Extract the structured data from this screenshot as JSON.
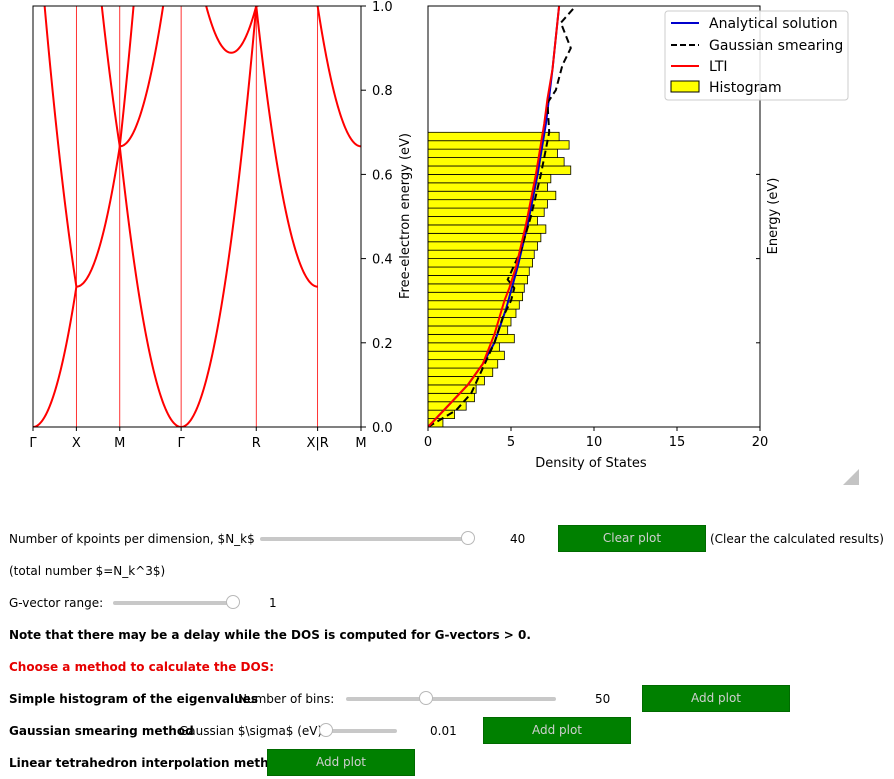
{
  "chart_data": [
    {
      "type": "line",
      "ylabel": "Free-electron energy (eV)",
      "ylim": [
        0,
        1.0
      ],
      "yticks": [
        "0.0",
        "0.2",
        "0.4",
        "0.6",
        "0.8",
        "1.0"
      ],
      "xticks": [
        "Γ",
        "X",
        "M",
        "Γ",
        "R",
        "X|R",
        "M"
      ],
      "series_color": "#ff0000",
      "grid": "vertical lines at high-symmetry points"
    },
    {
      "type": "bar",
      "xlabel": "Density of States",
      "ylabel": "Energy (eV)",
      "xlim": [
        0,
        20
      ],
      "ylim": [
        0,
        1.0
      ],
      "xticks": [
        "0",
        "5",
        "10",
        "15",
        "20"
      ],
      "legend_position": "top-right",
      "legend": [
        {
          "name": "Analytical solution",
          "color": "#0000cc",
          "style": "solid"
        },
        {
          "name": "Gaussian smearing",
          "color": "#000000",
          "style": "dashed"
        },
        {
          "name": "LTI",
          "color": "#ff0000",
          "style": "solid"
        },
        {
          "name": "Histogram",
          "color": "#ffff00",
          "style": "box"
        }
      ],
      "histogram": {
        "bin_width": 0.02,
        "values": [
          0.9,
          1.6,
          2.3,
          2.8,
          2.9,
          3.4,
          3.9,
          4.2,
          4.6,
          4.3,
          5.2,
          4.8,
          5.0,
          5.3,
          5.5,
          5.7,
          5.8,
          6.0,
          6.1,
          6.3,
          6.4,
          6.6,
          6.8,
          7.1,
          6.6,
          7.0,
          7.2,
          7.7,
          7.2,
          7.4,
          8.6,
          8.2,
          7.8,
          8.5,
          7.9
        ]
      },
      "analytical": {
        "x": [
          0,
          1.2,
          2.4,
          3.3,
          4.0,
          4.7,
          5.4,
          6.0,
          6.6,
          7.1,
          7.5,
          7.9
        ],
        "y": [
          0,
          0.05,
          0.1,
          0.15,
          0.2,
          0.28,
          0.38,
          0.48,
          0.6,
          0.72,
          0.85,
          1.0
        ]
      },
      "gaussian": {
        "x": [
          0,
          1.7,
          2.6,
          3.3,
          4.0,
          4.5,
          5.0,
          5.2,
          4.8,
          5.6,
          6.2,
          6.8,
          7.3,
          7.2,
          7.7,
          8.1,
          8.6,
          8.0,
          8.9
        ],
        "y": [
          0,
          0.04,
          0.08,
          0.14,
          0.2,
          0.26,
          0.3,
          0.33,
          0.35,
          0.42,
          0.5,
          0.6,
          0.7,
          0.77,
          0.8,
          0.86,
          0.9,
          0.96,
          1.0
        ]
      },
      "lti": {
        "x": [
          0,
          1.2,
          2.4,
          3.3,
          4.0,
          4.6,
          4.9,
          5.3,
          5.9,
          6.5,
          7.0,
          7.2,
          7.5,
          7.9
        ],
        "y": [
          0,
          0.05,
          0.1,
          0.15,
          0.22,
          0.3,
          0.33,
          0.38,
          0.48,
          0.6,
          0.72,
          0.78,
          0.85,
          1.0
        ]
      }
    }
  ],
  "controls": {
    "nk_label": "Number of kpoints per dimension, $N_k$",
    "nk_value": "40",
    "nk_fraction": 0.97,
    "clear_label": "Clear plot",
    "clear_note": "(Clear the calculated results)",
    "total_label": "(total number $=N_k^3$)",
    "g_label": "G-vector range:",
    "g_value": "1",
    "g_fraction": 1.0,
    "note": "Note that there may be a delay while the DOS is computed for G-vectors > 0.",
    "choose": "Choose a method to calculate the DOS:",
    "hist_title": "Simple histogram of the eigenvalues",
    "hist_bins_label": "Number of bins:",
    "hist_value": "50",
    "hist_fraction": 0.38,
    "add_plot": "Add plot",
    "gauss_title": "Gaussian smearing method",
    "gauss_sigma_label": "Gaussian $\\sigma$ (eV):",
    "gauss_value": "0.01",
    "gauss_fraction": 0.0,
    "lti_title": "Linear tetrahedron interpolation method"
  }
}
